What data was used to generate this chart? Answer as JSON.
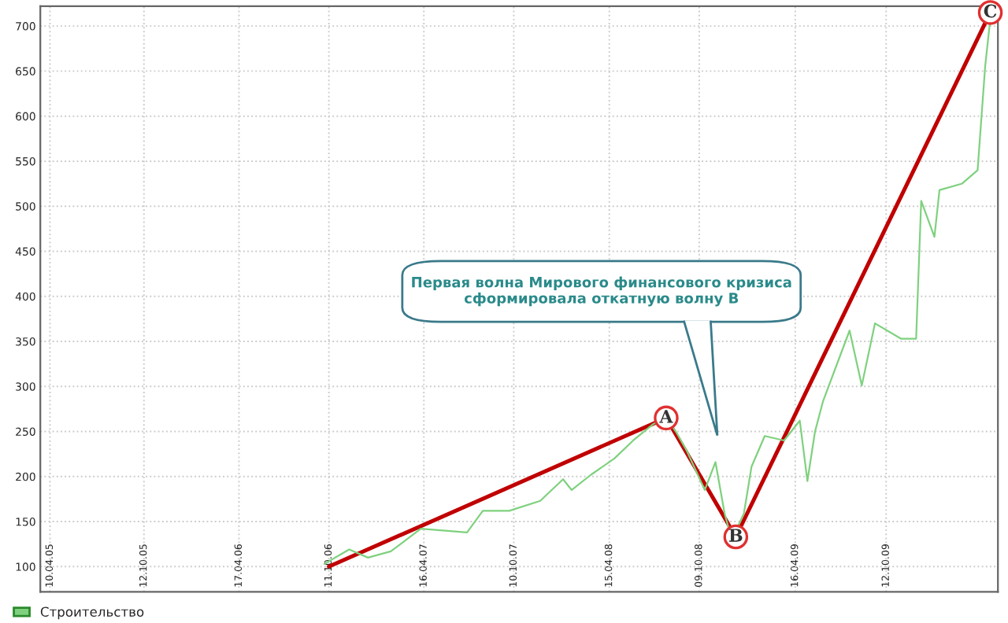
{
  "chart_data": {
    "type": "line",
    "xlim": [
      "2005-03-22",
      "2010-05-20"
    ],
    "ylim": [
      72,
      722
    ],
    "yticks": [
      100,
      150,
      200,
      250,
      300,
      350,
      400,
      450,
      500,
      550,
      600,
      650,
      700
    ],
    "xticks": [
      {
        "value": "2005-04-10",
        "label": "10.04.05"
      },
      {
        "value": "2005-10-12",
        "label": "12.10.05"
      },
      {
        "value": "2006-04-17",
        "label": "17.04.06"
      },
      {
        "value": "2006-10-11",
        "label": "11.10.06"
      },
      {
        "value": "2007-04-16",
        "label": "16.04.07"
      },
      {
        "value": "2007-10-10",
        "label": "10.10.07"
      },
      {
        "value": "2008-04-15",
        "label": "15.04.08"
      },
      {
        "value": "2008-10-09",
        "label": "09.10.08"
      },
      {
        "value": "2009-04-16",
        "label": "16.04.09"
      },
      {
        "value": "2009-10-12",
        "label": "12.10.09"
      }
    ],
    "grid": true,
    "legend": "bottom",
    "line_style": "solid",
    "series": [
      {
        "name": "Строительство",
        "color": "#7fd17f",
        "x": [
          "2006-10-02",
          "2006-11-20",
          "2006-12-27",
          "2007-02-10",
          "2007-04-10",
          "2007-07-10",
          "2007-08-10",
          "2007-10-01",
          "2007-12-01",
          "2008-01-15",
          "2008-02-01",
          "2008-03-10",
          "2008-04-25",
          "2008-06-01",
          "2008-07-10",
          "2008-08-05",
          "2008-08-25",
          "2008-09-15",
          "2008-10-20",
          "2008-11-10",
          "2008-11-28",
          "2008-12-12",
          "2009-01-05",
          "2009-01-20",
          "2009-02-15",
          "2009-03-25",
          "2009-04-25",
          "2009-05-10",
          "2009-05-25",
          "2009-06-10",
          "2009-08-01",
          "2009-08-25",
          "2009-09-20",
          "2009-11-10",
          "2009-12-10",
          "2009-12-20",
          "2010-01-15",
          "2010-01-25",
          "2010-03-10",
          "2010-04-10",
          "2010-04-25",
          "2010-05-05"
        ],
        "values": [
          103,
          119,
          110,
          117,
          142,
          138,
          162,
          162,
          173,
          197,
          185,
          202,
          220,
          240,
          258,
          265,
          249,
          228,
          185,
          216,
          159,
          130,
          159,
          211,
          245,
          240,
          262,
          195,
          250,
          284,
          362,
          301,
          370,
          353,
          353,
          506,
          466,
          518,
          525,
          540,
          656,
          708
        ]
      },
      {
        "type": "line",
        "color": "#c00000",
        "x": [
          "2006-10-11",
          "2008-08-05",
          "2008-12-20",
          "2010-05-05"
        ],
        "values": [
          100,
          265,
          133,
          715
        ]
      }
    ],
    "annotations": [
      {
        "text": "A",
        "x": "2008-08-05",
        "y": 265
      },
      {
        "text": "B",
        "x": "2008-12-20",
        "y": 133
      },
      {
        "text": "C",
        "x": "2010-05-05",
        "y": 715
      },
      "Первая волна Мирового финансового кризиса\nсформировала откатную волну B"
    ]
  }
}
